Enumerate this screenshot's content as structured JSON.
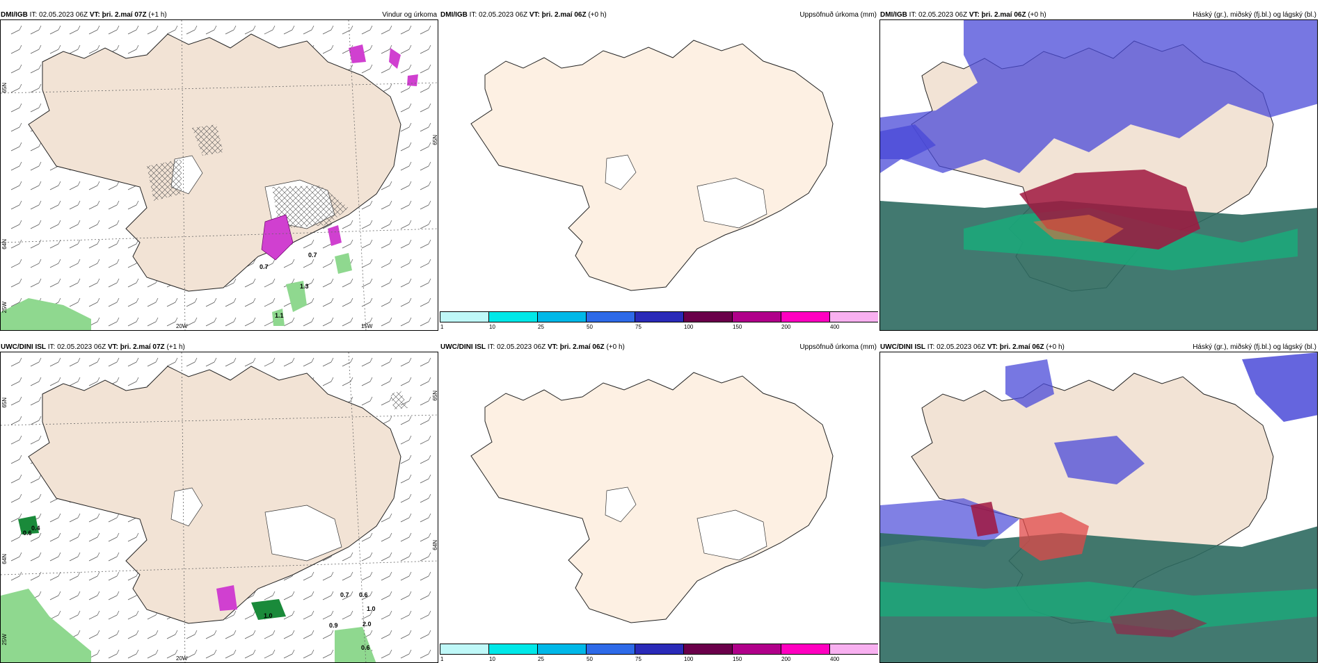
{
  "rows": [
    {
      "wind": {
        "model": "DMI/IGB",
        "it_label": "IT:",
        "it": "02.05.2023 06Z",
        "vt_label": "VT:",
        "vt": "þri. 2.maí 07Z",
        "lead": "(+1 h)",
        "right_title": "Vindur og úrkoma",
        "axis_labels": [
          "65N",
          "64N",
          "25W",
          "20W",
          "15W",
          "65N"
        ],
        "values": [
          "0.7",
          "0.7",
          "1.3",
          "1.1"
        ]
      },
      "precip": {
        "model": "DMI/IGB",
        "it_label": "IT:",
        "it": "02.05.2023 06Z",
        "vt_label": "VT:",
        "vt": "þri. 2.maí 06Z",
        "lead": "(+0 h)",
        "right_title": "Uppsöfnuð úrkoma (mm)"
      },
      "cloud": {
        "model": "DMI/IGB",
        "it_label": "IT:",
        "it": "02.05.2023 06Z",
        "vt_label": "VT:",
        "vt": "þri. 2.maí 06Z",
        "lead": "(+0 h)",
        "right_title": "Háský (gr.), miðský (fj.bl.) og lágský (bl.)"
      }
    },
    {
      "wind": {
        "model": "UWC/DINI ISL",
        "it_label": "IT:",
        "it": "02.05.2023 06Z",
        "vt_label": "VT:",
        "vt": "þri. 2.maí 07Z",
        "lead": "(+1 h)",
        "right_title": "",
        "axis_labels": [
          "65N",
          "64N",
          "25W",
          "20W",
          "65N",
          "64N"
        ],
        "values": [
          "0.6",
          "0.4",
          "1.0",
          "0.7",
          "0.6",
          "1.0",
          "0.9",
          "2.0",
          "0.6"
        ]
      },
      "precip": {
        "model": "UWC/DINI ISL",
        "it_label": "IT:",
        "it": "02.05.2023 06Z",
        "vt_label": "VT:",
        "vt": "þri. 2.maí 06Z",
        "lead": "(+0 h)",
        "right_title": "Uppsöfnuð úrkoma (mm)"
      },
      "cloud": {
        "model": "UWC/DINI ISL",
        "it_label": "IT:",
        "it": "02.05.2023 06Z",
        "vt_label": "VT:",
        "vt": "þri. 2.maí 06Z",
        "lead": "(+0 h)",
        "right_title": "Háský (gr.), miðský (fj.bl.) og lágský (bl.)"
      }
    }
  ],
  "colorbar": {
    "labels": [
      "1",
      "10",
      "25",
      "50",
      "75",
      "100",
      "150",
      "200",
      "400"
    ],
    "colors": [
      "#bff8f8",
      "#00e8e8",
      "#00b8e8",
      "#2e6ae8",
      "#2a2ab8",
      "#6a004a",
      "#b0008a",
      "#ff00c0",
      "#f8b0f0"
    ]
  },
  "colors": {
    "land": "#f2e3d5",
    "land_precip": "#fdf0e3",
    "magenta": "#d040d0",
    "green": "#8fd88f",
    "blue_cloud": "#4a4ad8",
    "red_cloud": "#a01840",
    "teal_cloud": "#1aaa7a",
    "dark_cloud": "#2e6a60"
  }
}
